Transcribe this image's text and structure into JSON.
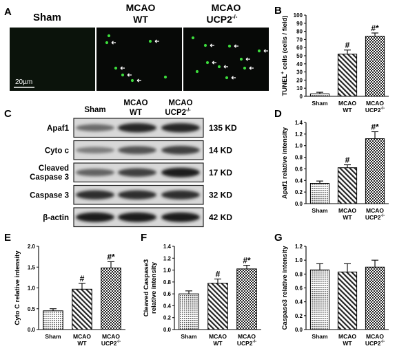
{
  "panel_letters": [
    "A",
    "B",
    "C",
    "D",
    "E",
    "F",
    "G"
  ],
  "panel_a": {
    "labels": [
      {
        "main": "Sham",
        "sub": "",
        "sup": ""
      },
      {
        "main": "MCAO",
        "sub": "WT",
        "sup": ""
      },
      {
        "main": "MCAO",
        "sub": "UCP2",
        "sup": "-/-"
      }
    ],
    "scale_bar": "20µm"
  },
  "panel_c": {
    "lane_labels": [
      {
        "main": "Sham",
        "sub": "",
        "sup": ""
      },
      {
        "main": "MCAO",
        "sub": "WT",
        "sup": ""
      },
      {
        "main": "MCAO",
        "sub": "UCP2",
        "sup": "-/-"
      }
    ],
    "rows": [
      {
        "name": "Apaf1",
        "name2": "",
        "kd": "135 KD",
        "intensity": [
          0.55,
          0.95,
          0.95
        ]
      },
      {
        "name": "Cyto c",
        "name2": "",
        "kd": "14 KD",
        "intensity": [
          0.45,
          0.7,
          0.8
        ]
      },
      {
        "name": "Cleaved",
        "name2": "Caspase 3",
        "kd": "17 KD",
        "intensity": [
          0.6,
          0.8,
          1.0
        ]
      },
      {
        "name": "Caspase 3",
        "name2": "",
        "kd": "32 KD",
        "intensity": [
          0.9,
          0.9,
          0.9
        ]
      },
      {
        "name": "β-actin",
        "name2": "",
        "kd": "42 KD",
        "intensity": [
          1.0,
          1.0,
          1.0
        ]
      }
    ]
  },
  "chart_data": [
    {
      "panel": "B",
      "type": "bar",
      "categories": [
        "Sham",
        "MCAO WT",
        "MCAO UCP2-/-"
      ],
      "values": [
        3,
        52,
        74
      ],
      "errors": [
        2,
        5,
        4
      ],
      "sig": [
        "",
        "#",
        "#*"
      ],
      "ylabel": "TUNEL+ cells (cells / field)",
      "ylim": [
        0,
        100
      ],
      "ticks": [
        0,
        10,
        20,
        30,
        40,
        50,
        60,
        70,
        80,
        90,
        100
      ],
      "grid": false
    },
    {
      "panel": "D",
      "type": "bar",
      "categories": [
        "Sham",
        "MCAO WT",
        "MCAO UCP2-/-"
      ],
      "values": [
        0.35,
        0.62,
        1.12
      ],
      "errors": [
        0.04,
        0.05,
        0.12
      ],
      "sig": [
        "",
        "#",
        "#*"
      ],
      "ylabel": "Apaf1 relative intensity",
      "ylim": [
        0,
        1.4
      ],
      "ticks": [
        0,
        0.2,
        0.4,
        0.6,
        0.8,
        1.0,
        1.2,
        1.4
      ],
      "grid": false
    },
    {
      "panel": "E",
      "type": "bar",
      "categories": [
        "Sham",
        "MCAO WT",
        "MCAO UCP2-/-"
      ],
      "values": [
        0.45,
        0.97,
        1.48
      ],
      "errors": [
        0.05,
        0.14,
        0.15
      ],
      "sig": [
        "",
        "#",
        "#*"
      ],
      "ylabel": "Cyto C relative intensity",
      "ylim": [
        0,
        2.0
      ],
      "ticks": [
        0,
        0.5,
        1.0,
        1.5,
        2.0
      ],
      "grid": false
    },
    {
      "panel": "F",
      "type": "bar",
      "categories": [
        "Sham",
        "MCAO WT",
        "MCAO UCP2-/-"
      ],
      "values": [
        0.6,
        0.78,
        1.02
      ],
      "errors": [
        0.05,
        0.07,
        0.06
      ],
      "sig": [
        "",
        "#",
        "#*"
      ],
      "ylabel": "Cleaved Caspase3 relative intensity",
      "ylim": [
        0,
        1.4
      ],
      "ticks": [
        0,
        0.2,
        0.4,
        0.6,
        0.8,
        1.0,
        1.2,
        1.4
      ],
      "grid": false
    },
    {
      "panel": "G",
      "type": "bar",
      "categories": [
        "Sham",
        "MCAO WT",
        "MCAO UCP2-/-"
      ],
      "values": [
        0.86,
        0.83,
        0.9
      ],
      "errors": [
        0.09,
        0.12,
        0.1
      ],
      "sig": [
        "",
        "",
        ""
      ],
      "ylabel": "Caspase3 relative intensity",
      "ylim": [
        0,
        1.2
      ],
      "ticks": [
        0,
        0.2,
        0.4,
        0.6,
        0.8,
        1.0,
        1.2
      ],
      "grid": false
    }
  ]
}
